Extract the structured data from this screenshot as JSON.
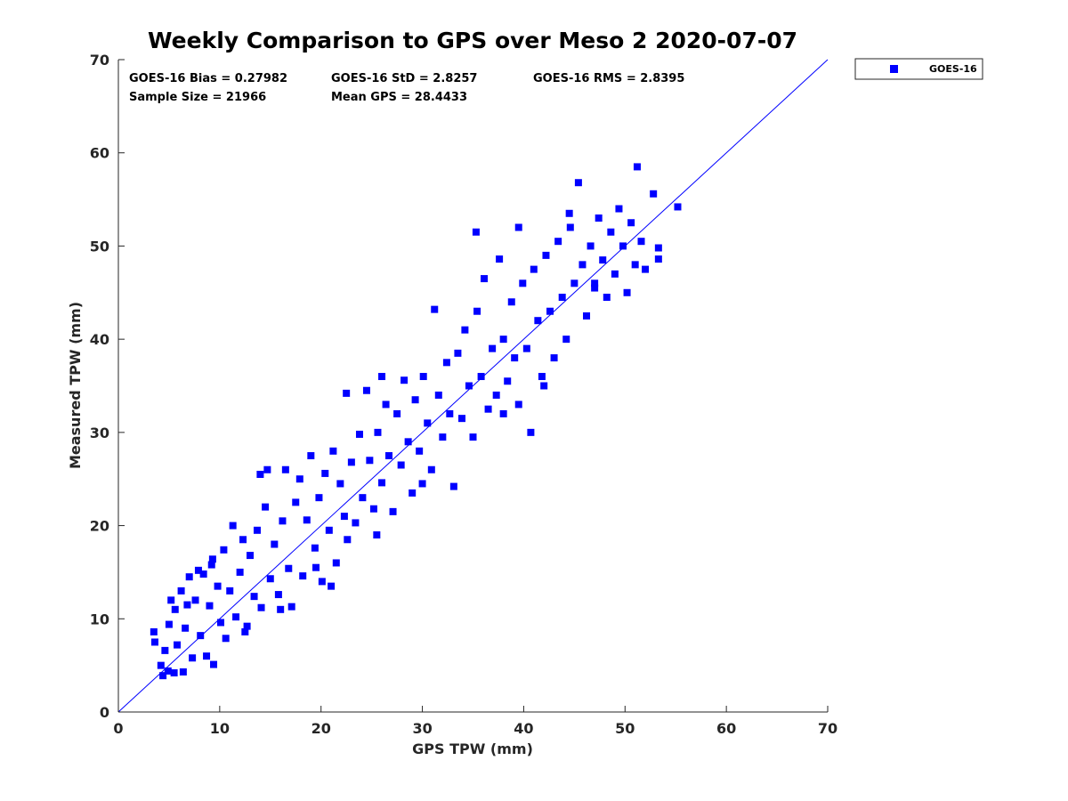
{
  "chart_data": {
    "type": "scatter",
    "title": "Weekly Comparison to GPS over Meso 2 2020-07-07",
    "xlabel": "GPS TPW (mm)",
    "ylabel": "Measured TPW (mm)",
    "xlim": [
      0,
      70
    ],
    "ylim": [
      0,
      70
    ],
    "xticks": [
      "0",
      "10",
      "20",
      "30",
      "40",
      "50",
      "60",
      "70"
    ],
    "yticks": [
      "0",
      "10",
      "20",
      "30",
      "40",
      "50",
      "60",
      "70"
    ],
    "grid": false,
    "legend_position": "top-right outside plot",
    "marker_color": "#0000ff",
    "reference_line": {
      "from": [
        0,
        0
      ],
      "to": [
        70,
        70
      ],
      "color": "#0000ff"
    },
    "stats": {
      "bias": "GOES-16 Bias = 0.27982",
      "std": "GOES-16 StD = 2.8257",
      "rms": "GOES-16 RMS = 2.8395",
      "sample": "Sample Size = 21966",
      "mean": "Mean GPS = 28.4433"
    },
    "series": [
      {
        "name": "GOES-16",
        "color": "#0000ff",
        "points": [
          [
            3.5,
            8.6
          ],
          [
            3.6,
            7.5
          ],
          [
            4.2,
            5.0
          ],
          [
            4.4,
            3.9
          ],
          [
            4.6,
            6.6
          ],
          [
            4.9,
            4.4
          ],
          [
            5.0,
            9.4
          ],
          [
            5.2,
            12.0
          ],
          [
            5.5,
            4.2
          ],
          [
            5.6,
            11.0
          ],
          [
            5.8,
            7.2
          ],
          [
            6.2,
            13.0
          ],
          [
            6.4,
            4.3
          ],
          [
            6.6,
            9.0
          ],
          [
            7.0,
            14.5
          ],
          [
            7.3,
            5.8
          ],
          [
            7.6,
            12.0
          ],
          [
            7.9,
            15.2
          ],
          [
            8.1,
            8.2
          ],
          [
            8.4,
            14.8
          ],
          [
            8.7,
            6.0
          ],
          [
            9.0,
            11.4
          ],
          [
            9.2,
            15.8
          ],
          [
            9.4,
            5.1
          ],
          [
            9.8,
            13.5
          ],
          [
            10.1,
            9.6
          ],
          [
            10.4,
            17.4
          ],
          [
            10.6,
            7.9
          ],
          [
            11.0,
            13.0
          ],
          [
            11.3,
            20.0
          ],
          [
            11.6,
            10.2
          ],
          [
            12.0,
            15.0
          ],
          [
            12.3,
            18.5
          ],
          [
            12.7,
            9.2
          ],
          [
            13.0,
            16.8
          ],
          [
            13.4,
            12.4
          ],
          [
            13.7,
            19.5
          ],
          [
            14.1,
            11.2
          ],
          [
            14.5,
            22.0
          ],
          [
            14.7,
            26.0
          ],
          [
            15.0,
            14.3
          ],
          [
            15.4,
            18.0
          ],
          [
            15.8,
            12.6
          ],
          [
            16.2,
            20.5
          ],
          [
            16.5,
            26.0
          ],
          [
            16.8,
            15.4
          ],
          [
            17.1,
            11.3
          ],
          [
            17.5,
            22.5
          ],
          [
            17.9,
            25.0
          ],
          [
            18.2,
            14.6
          ],
          [
            18.6,
            20.6
          ],
          [
            19.0,
            27.5
          ],
          [
            19.4,
            17.6
          ],
          [
            19.8,
            23.0
          ],
          [
            20.1,
            14.0
          ],
          [
            20.4,
            25.6
          ],
          [
            20.8,
            19.5
          ],
          [
            21.2,
            28.0
          ],
          [
            21.5,
            16.0
          ],
          [
            21.9,
            24.5
          ],
          [
            22.3,
            21.0
          ],
          [
            22.6,
            18.5
          ],
          [
            23.0,
            26.8
          ],
          [
            23.4,
            20.3
          ],
          [
            23.8,
            29.8
          ],
          [
            24.1,
            23.0
          ],
          [
            24.5,
            34.5
          ],
          [
            24.8,
            27.0
          ],
          [
            25.2,
            21.8
          ],
          [
            25.6,
            30.0
          ],
          [
            26.0,
            24.6
          ],
          [
            26.4,
            33.0
          ],
          [
            26.7,
            27.5
          ],
          [
            27.1,
            21.5
          ],
          [
            27.5,
            32.0
          ],
          [
            27.9,
            26.5
          ],
          [
            28.2,
            35.6
          ],
          [
            28.6,
            29.0
          ],
          [
            29.0,
            23.5
          ],
          [
            29.3,
            33.5
          ],
          [
            29.7,
            28.0
          ],
          [
            30.1,
            36.0
          ],
          [
            30.5,
            31.0
          ],
          [
            30.9,
            26.0
          ],
          [
            31.2,
            43.2
          ],
          [
            31.6,
            34.0
          ],
          [
            32.0,
            29.5
          ],
          [
            32.4,
            37.5
          ],
          [
            32.7,
            32.0
          ],
          [
            33.1,
            24.2
          ],
          [
            33.5,
            38.5
          ],
          [
            33.9,
            31.5
          ],
          [
            34.2,
            41.0
          ],
          [
            34.6,
            35.0
          ],
          [
            35.0,
            29.5
          ],
          [
            35.4,
            43.0
          ],
          [
            35.8,
            36.0
          ],
          [
            36.1,
            46.5
          ],
          [
            36.5,
            32.5
          ],
          [
            36.9,
            39.0
          ],
          [
            37.3,
            34.0
          ],
          [
            37.6,
            48.6
          ],
          [
            38.0,
            40.0
          ],
          [
            38.4,
            35.5
          ],
          [
            38.8,
            44.0
          ],
          [
            39.1,
            38.0
          ],
          [
            39.5,
            33.0
          ],
          [
            39.9,
            46.0
          ],
          [
            40.3,
            39.0
          ],
          [
            40.7,
            30.0
          ],
          [
            41.0,
            47.5
          ],
          [
            41.4,
            42.0
          ],
          [
            41.8,
            36.0
          ],
          [
            42.2,
            49.0
          ],
          [
            42.6,
            43.0
          ],
          [
            43.0,
            38.0
          ],
          [
            43.4,
            50.5
          ],
          [
            43.8,
            44.5
          ],
          [
            44.2,
            40.0
          ],
          [
            44.6,
            52.0
          ],
          [
            45.0,
            46.0
          ],
          [
            45.4,
            56.8
          ],
          [
            45.8,
            48.0
          ],
          [
            46.2,
            42.5
          ],
          [
            46.6,
            50.0
          ],
          [
            47.0,
            46.0
          ],
          [
            47.4,
            53.0
          ],
          [
            47.8,
            48.5
          ],
          [
            48.2,
            44.5
          ],
          [
            48.6,
            51.5
          ],
          [
            49.0,
            47.0
          ],
          [
            49.4,
            54.0
          ],
          [
            49.8,
            50.0
          ],
          [
            50.2,
            45.0
          ],
          [
            50.6,
            52.5
          ],
          [
            51.0,
            48.0
          ],
          [
            51.2,
            58.5
          ],
          [
            51.6,
            50.5
          ],
          [
            52.0,
            47.5
          ],
          [
            52.8,
            55.6
          ],
          [
            53.3,
            49.8
          ],
          [
            53.3,
            48.6
          ],
          [
            55.2,
            54.2
          ],
          [
            12.5,
            8.6
          ],
          [
            16.0,
            11.0
          ],
          [
            19.5,
            15.5
          ],
          [
            21.0,
            13.5
          ],
          [
            25.5,
            19.0
          ],
          [
            30.0,
            24.5
          ],
          [
            38.0,
            32.0
          ],
          [
            42.0,
            35.0
          ],
          [
            22.5,
            34.2
          ],
          [
            26.0,
            36.0
          ],
          [
            14.0,
            25.5
          ],
          [
            9.3,
            16.4
          ],
          [
            6.8,
            11.5
          ],
          [
            35.3,
            51.5
          ],
          [
            39.5,
            52.0
          ],
          [
            44.5,
            53.5
          ],
          [
            47.0,
            45.5
          ]
        ]
      }
    ]
  }
}
